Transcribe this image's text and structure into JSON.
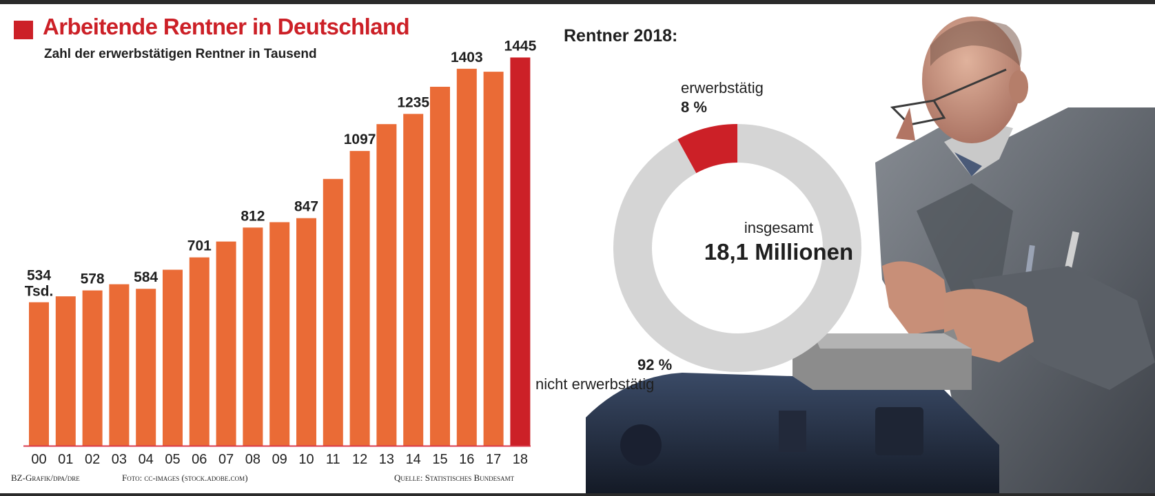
{
  "header": {
    "title": "Arbeitende Rentner in Deutschland",
    "subtitle": "Zahl der erwerbstätigen Rentner in Tausend"
  },
  "chart_data": [
    {
      "type": "bar",
      "title": "Arbeitende Rentner in Deutschland",
      "subtitle": "Zahl der erwerbstätigen Rentner in Tausend",
      "categories": [
        "00",
        "01",
        "02",
        "03",
        "04",
        "05",
        "06",
        "07",
        "08",
        "09",
        "10",
        "11",
        "12",
        "13",
        "14",
        "15",
        "16",
        "17",
        "18"
      ],
      "values": [
        534,
        556,
        578,
        601,
        584,
        655,
        701,
        760,
        812,
        832,
        847,
        993,
        1097,
        1197,
        1235,
        1336,
        1403,
        1392,
        1445
      ],
      "data_labels": [
        {
          "index": 0,
          "text": "534",
          "sub": "Tsd."
        },
        {
          "index": 2,
          "text": "578"
        },
        {
          "index": 4,
          "text": "584"
        },
        {
          "index": 6,
          "text": "701"
        },
        {
          "index": 8,
          "text": "812"
        },
        {
          "index": 10,
          "text": "847"
        },
        {
          "index": 12,
          "text": "1097"
        },
        {
          "index": 14,
          "text": "1235"
        },
        {
          "index": 16,
          "text": "1403"
        },
        {
          "index": 18,
          "text": "1445"
        }
      ],
      "ylim": [
        0,
        1500
      ],
      "grid": false,
      "colors": {
        "bar": "#ea6b36",
        "highlight": "#cc2027",
        "baseline": "#d9374a"
      },
      "highlight_index": 18
    },
    {
      "type": "pie",
      "title": "Rentner 2018:",
      "center_label": "insgesamt",
      "center_value": "18,1 Millionen",
      "slices": [
        {
          "label": "erwerbstätig",
          "percent_text": "8 %",
          "value": 8,
          "color": "#cc2027"
        },
        {
          "label": "nicht erwerbstätig",
          "percent_text": "92 %",
          "value": 92,
          "color": "#d5d5d5"
        }
      ]
    }
  ],
  "footer": {
    "credit": "BZ-Grafik/dpa/dre",
    "photo": "Foto: cc-images (stock.adobe.com)",
    "source": "Quelle: Statistisches Bundesamt"
  },
  "photo": {
    "icon": "worker-at-vise-photo",
    "colors": {
      "coat": "#6c7178",
      "coat_dark": "#3c4047",
      "skin": "#c99680",
      "vise": "#2c3a52",
      "metal": "#9c9c9c"
    }
  }
}
